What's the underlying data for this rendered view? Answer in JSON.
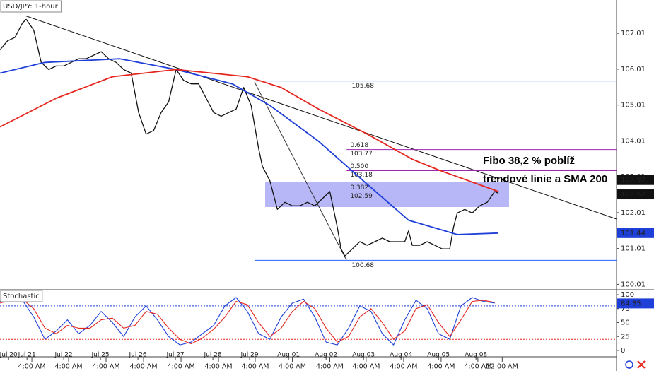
{
  "chart_data": [
    {
      "type": "line",
      "title": "USD/JPY: 1-hour",
      "xlim": [
        0,
        164.5
      ],
      "ylim": [
        99.86,
        107.94
      ],
      "yticks": [
        100.01,
        101.01,
        102.01,
        103.01,
        104.01,
        105.01,
        106.01,
        107.01
      ],
      "series": [
        {
          "color": "#111111",
          "width": 1.3,
          "x": [
            0,
            2,
            4,
            6,
            7,
            9,
            11,
            13,
            15,
            17,
            19,
            21,
            23,
            25,
            27,
            29,
            31,
            33,
            35,
            37,
            39,
            41,
            43,
            45,
            47,
            49,
            51,
            53,
            55,
            57,
            59,
            61,
            63,
            65,
            67,
            68,
            69,
            70,
            72,
            74,
            76,
            78,
            80,
            82,
            84,
            86,
            88,
            89,
            90,
            91,
            92,
            94,
            96,
            98,
            100,
            102,
            104,
            106,
            108,
            109,
            110,
            112,
            114,
            116,
            118,
            120,
            121,
            122,
            124,
            126,
            128,
            130,
            132,
            133
          ],
          "values": [
            106.55,
            106.8,
            106.9,
            107.3,
            107.4,
            107.1,
            106.2,
            106.0,
            106.1,
            106.1,
            106.2,
            106.3,
            106.3,
            106.4,
            106.5,
            106.3,
            106.2,
            106.0,
            105.9,
            104.8,
            104.2,
            104.3,
            104.8,
            105.1,
            106.0,
            105.7,
            105.6,
            105.6,
            105.2,
            104.8,
            104.7,
            104.8,
            104.9,
            105.5,
            105.0,
            104.4,
            103.8,
            103.3,
            102.9,
            102.1,
            102.3,
            102.2,
            102.2,
            102.3,
            102.2,
            102.4,
            102.6,
            102.1,
            101.6,
            101.0,
            100.8,
            101.0,
            101.2,
            101.1,
            101.2,
            101.3,
            101.2,
            101.2,
            101.2,
            101.5,
            101.1,
            101.1,
            101.2,
            101.1,
            101.0,
            101.0,
            101.6,
            102.0,
            102.1,
            102.0,
            102.2,
            102.3,
            102.6,
            102.55
          ]
        },
        {
          "color": "#1e3fd8",
          "width": 1.8,
          "x": [
            0,
            12,
            32,
            47,
            62,
            72,
            85,
            98,
            109,
            122,
            133
          ],
          "values": [
            105.9,
            106.2,
            106.3,
            106.0,
            105.6,
            105.0,
            104.0,
            102.8,
            101.8,
            101.4,
            101.44
          ]
        },
        {
          "color": "#e5261f",
          "width": 1.8,
          "x": [
            0,
            15,
            30,
            47,
            66,
            75,
            85,
            98,
            110,
            117,
            133
          ],
          "values": [
            104.4,
            105.2,
            105.8,
            106.0,
            105.8,
            105.5,
            104.9,
            104.2,
            103.5,
            103.2,
            102.6
          ]
        }
      ],
      "levels": [
        {
          "value": 105.68,
          "x_start": 68,
          "color": "#2962ff"
        },
        {
          "value": 103.77,
          "ratio": {
            "value": 0.618,
            "label": "0.618"
          },
          "x_start": 92.5,
          "color": "#9c27b0"
        },
        {
          "value": 103.18,
          "ratio": {
            "value": 0.5,
            "label": "0.500"
          },
          "x_start": 92.5,
          "color": "#9c27b0"
        },
        {
          "value": 102.59,
          "ratio": {
            "value": 0.382,
            "label": "0.382"
          },
          "x_start": 92.5,
          "color": "#9c27b0"
        },
        {
          "value": 100.68,
          "x_start": 68,
          "color": "#2962ff"
        }
      ],
      "badges": [
        {
          "value": 102.92,
          "color": "#111111"
        },
        {
          "value": 102.52,
          "color": "#111111"
        },
        {
          "value": 101.44,
          "color": "#1e3fd8"
        }
      ],
      "annotation": [
        "Fibo 38,2 % poblíž",
        "trendové linie a SMA 200"
      ]
    },
    {
      "type": "line",
      "title": "Stochastic",
      "xlim": [
        0,
        164.5
      ],
      "ylim": [
        -11.4,
        108.9
      ],
      "yticks": [
        0,
        25,
        50,
        75,
        100
      ],
      "xticks": [
        {
          "value": 2.3,
          "label": "Jul 20"
        },
        {
          "value": 7.2,
          "label": "Jul 21"
        },
        {
          "value": 17,
          "label": "Jul 22"
        },
        {
          "value": 26.8,
          "label": "Jul 25"
        },
        {
          "value": 36.8,
          "label": "Jul 26"
        },
        {
          "value": 46.8,
          "label": "Jul 27"
        },
        {
          "value": 56.8,
          "label": "Jul 28"
        },
        {
          "value": 66.6,
          "label": "Jul 29"
        },
        {
          "value": 77,
          "label": "Aug 01"
        },
        {
          "value": 87,
          "label": "Aug 02"
        },
        {
          "value": 97,
          "label": "Aug 03"
        },
        {
          "value": 107,
          "label": "Aug 04"
        },
        {
          "value": 117,
          "label": "Aug 05"
        },
        {
          "value": 127,
          "label": "Aug 08"
        }
      ],
      "xticks_time": [
        {
          "value": 8.5,
          "label": "4:00 AM"
        },
        {
          "value": 18.3,
          "label": "4:00 AM"
        },
        {
          "value": 28.3,
          "label": "4:00 AM"
        },
        {
          "value": 38.3,
          "label": "4:00 AM"
        },
        {
          "value": 48.3,
          "label": "4:00 AM"
        },
        {
          "value": 58.3,
          "label": "4:00 AM"
        },
        {
          "value": 68.1,
          "label": "4:00 AM"
        },
        {
          "value": 78,
          "label": "4:00 AM"
        },
        {
          "value": 88,
          "label": "4:00 AM"
        },
        {
          "value": 97.7,
          "label": "4:00 AM"
        },
        {
          "value": 107.7,
          "label": "4:00 AM"
        },
        {
          "value": 117.7,
          "label": "4:00 AM"
        },
        {
          "value": 127.5,
          "label": "4:00 AM"
        },
        {
          "value": 134,
          "label": "12:00 AM"
        }
      ],
      "series": [
        {
          "color": "#1e3fd8",
          "width": 1.1,
          "x": [
            0,
            3,
            6,
            9,
            12,
            15,
            18,
            21,
            24,
            27,
            30,
            33,
            36,
            39,
            42,
            45,
            48,
            51,
            54,
            57,
            60,
            63,
            66,
            69,
            72,
            75,
            78,
            81,
            84,
            87,
            90,
            93,
            96,
            99,
            102,
            105,
            108,
            111,
            114,
            117,
            120,
            123,
            126,
            129,
            132
          ],
          "values": [
            88,
            95,
            90,
            60,
            20,
            35,
            55,
            30,
            45,
            70,
            50,
            25,
            60,
            80,
            55,
            25,
            10,
            15,
            30,
            45,
            80,
            95,
            70,
            30,
            20,
            60,
            85,
            92,
            60,
            15,
            10,
            40,
            80,
            70,
            30,
            10,
            55,
            90,
            75,
            30,
            20,
            80,
            95,
            88,
            85
          ]
        },
        {
          "color": "#e5261f",
          "width": 1.1,
          "x": [
            0,
            3,
            6,
            9,
            12,
            15,
            18,
            21,
            24,
            27,
            30,
            33,
            36,
            39,
            42,
            45,
            48,
            51,
            54,
            57,
            60,
            63,
            66,
            69,
            72,
            75,
            78,
            81,
            84,
            87,
            90,
            93,
            96,
            99,
            102,
            105,
            108,
            111,
            114,
            117,
            120,
            123,
            126,
            129,
            132
          ],
          "values": [
            85,
            90,
            92,
            75,
            40,
            30,
            45,
            40,
            40,
            55,
            58,
            40,
            45,
            70,
            65,
            40,
            20,
            12,
            22,
            38,
            60,
            88,
            82,
            50,
            25,
            40,
            70,
            88,
            75,
            40,
            15,
            25,
            60,
            75,
            50,
            20,
            35,
            75,
            82,
            50,
            25,
            55,
            88,
            90,
            86
          ]
        }
      ],
      "levels": [
        {
          "value": 80,
          "color": "#1e3fd8",
          "dashed": true
        },
        {
          "value": 20,
          "color": "#e5261f",
          "dashed": true
        }
      ],
      "badges": [
        {
          "value": 84.35,
          "color": "#1e3fd8"
        }
      ]
    }
  ]
}
